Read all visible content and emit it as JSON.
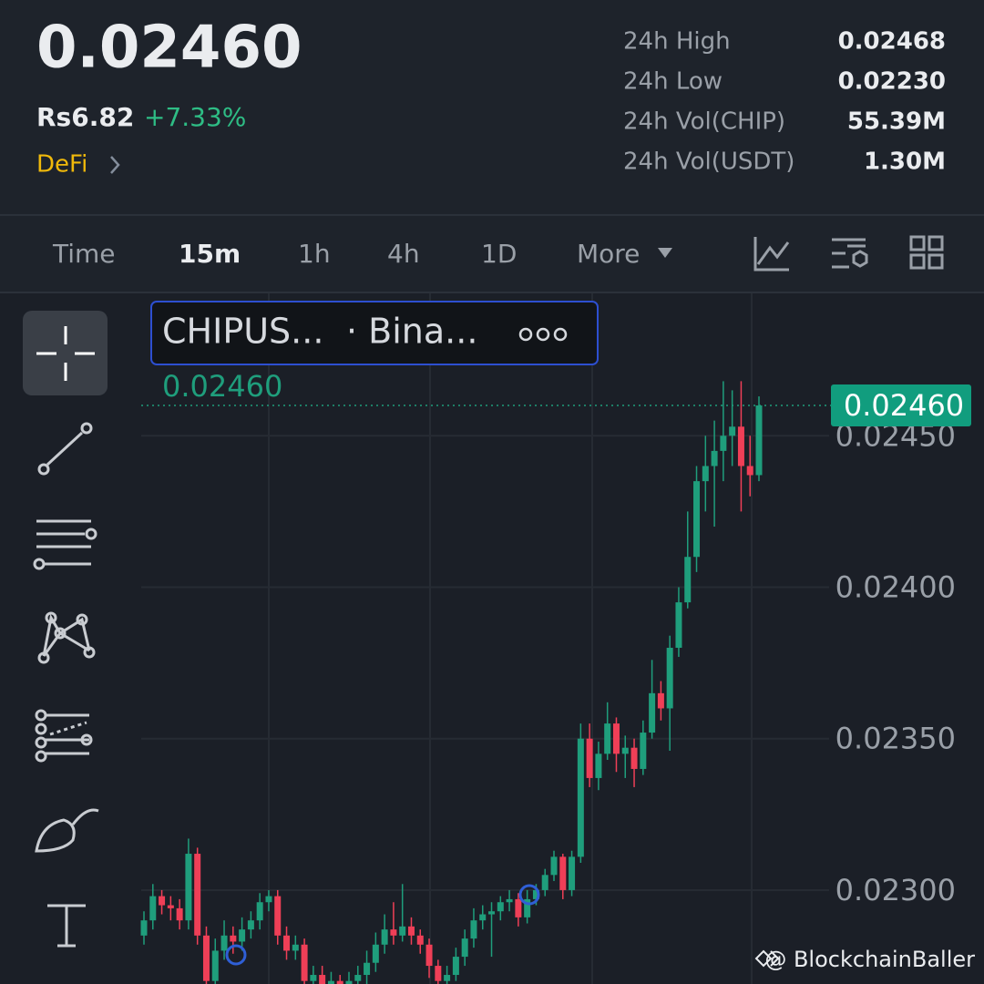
{
  "header": {
    "price": "0.02460",
    "fiat": "Rs6.82",
    "change": "+7.33%",
    "tag": "DeFi",
    "stats": [
      {
        "label": "24h High",
        "value": "0.02468"
      },
      {
        "label": "24h Low",
        "value": "0.02230"
      },
      {
        "label": "24h Vol(CHIP)",
        "value": "55.39M"
      },
      {
        "label": "24h Vol(USDT)",
        "value": "1.30M"
      }
    ]
  },
  "tabs": [
    "Time",
    "15m",
    "1h",
    "4h",
    "1D",
    "More"
  ],
  "legend": {
    "symbol": "CHIPUS...",
    "exchange": "· Bina..."
  },
  "watermark": "@ BlockchainBaller",
  "chart_data": {
    "type": "candlestick",
    "up_color": "#1f9e7c",
    "down_color": "#ef3f57",
    "ylim": [
      0.02269,
      0.02497
    ],
    "yticks": [
      {
        "value": 0.023,
        "label": "0.02300"
      },
      {
        "value": 0.0235,
        "label": "0.02350"
      },
      {
        "value": 0.024,
        "label": "0.02400"
      },
      {
        "value": 0.0245,
        "label": "0.02450"
      }
    ],
    "last_price": {
      "value": 0.0246,
      "label": "0.02460"
    },
    "candles": [
      [
        0.02285,
        0.02293,
        0.02282,
        0.0229
      ],
      [
        0.0229,
        0.02302,
        0.02287,
        0.02298
      ],
      [
        0.02298,
        0.023,
        0.02292,
        0.02295
      ],
      [
        0.02295,
        0.02298,
        0.0229,
        0.02294
      ],
      [
        0.02294,
        0.02297,
        0.02287,
        0.0229
      ],
      [
        0.0229,
        0.02317,
        0.02287,
        0.02312
      ],
      [
        0.02312,
        0.02314,
        0.02282,
        0.02285
      ],
      [
        0.02285,
        0.02288,
        0.02266,
        0.0227
      ],
      [
        0.0227,
        0.02284,
        0.02267,
        0.0228
      ],
      [
        0.0228,
        0.0229,
        0.02277,
        0.02285
      ],
      [
        0.02285,
        0.02288,
        0.02279,
        0.02283
      ],
      [
        0.02283,
        0.02291,
        0.0228,
        0.02287
      ],
      [
        0.02287,
        0.02293,
        0.02284,
        0.0229
      ],
      [
        0.0229,
        0.02299,
        0.02287,
        0.02296
      ],
      [
        0.02296,
        0.023,
        0.02293,
        0.02298
      ],
      [
        0.02298,
        0.023,
        0.02282,
        0.02285
      ],
      [
        0.02285,
        0.02288,
        0.02277,
        0.0228
      ],
      [
        0.0228,
        0.02285,
        0.02277,
        0.02282
      ],
      [
        0.02282,
        0.02284,
        0.02266,
        0.0227
      ],
      [
        0.0227,
        0.02275,
        0.02267,
        0.02272
      ],
      [
        0.02272,
        0.02275,
        0.02265,
        0.02268
      ],
      [
        0.02268,
        0.02273,
        0.02265,
        0.0227
      ],
      [
        0.0227,
        0.02272,
        0.02265,
        0.02268
      ],
      [
        0.02268,
        0.02273,
        0.02266,
        0.0227
      ],
      [
        0.0227,
        0.02275,
        0.02267,
        0.02272
      ],
      [
        0.02272,
        0.0228,
        0.02269,
        0.02276
      ],
      [
        0.02276,
        0.02286,
        0.02273,
        0.02282
      ],
      [
        0.02282,
        0.02292,
        0.02279,
        0.02287
      ],
      [
        0.02287,
        0.02296,
        0.02282,
        0.02285
      ],
      [
        0.02285,
        0.02302,
        0.02283,
        0.02288
      ],
      [
        0.02288,
        0.02291,
        0.02282,
        0.02285
      ],
      [
        0.02285,
        0.02287,
        0.02279,
        0.02282
      ],
      [
        0.02282,
        0.02284,
        0.02271,
        0.02275
      ],
      [
        0.02275,
        0.02277,
        0.02266,
        0.0227
      ],
      [
        0.0227,
        0.02275,
        0.02267,
        0.02272
      ],
      [
        0.02272,
        0.02281,
        0.0227,
        0.02278
      ],
      [
        0.02278,
        0.02287,
        0.02275,
        0.02284
      ],
      [
        0.02284,
        0.02294,
        0.02281,
        0.0229
      ],
      [
        0.0229,
        0.02295,
        0.02287,
        0.02292
      ],
      [
        0.02292,
        0.02296,
        0.02278,
        0.02293
      ],
      [
        0.02293,
        0.02298,
        0.0229,
        0.02296
      ],
      [
        0.02296,
        0.023,
        0.02293,
        0.02297
      ],
      [
        0.02297,
        0.02299,
        0.02288,
        0.02291
      ],
      [
        0.02291,
        0.023,
        0.02289,
        0.02297
      ],
      [
        0.02297,
        0.02302,
        0.02295,
        0.023
      ],
      [
        0.023,
        0.02307,
        0.02298,
        0.02305
      ],
      [
        0.02305,
        0.02313,
        0.02303,
        0.02311
      ],
      [
        0.02311,
        0.02312,
        0.02297,
        0.023
      ],
      [
        0.023,
        0.02313,
        0.02298,
        0.02311
      ],
      [
        0.02311,
        0.02355,
        0.02309,
        0.0235
      ],
      [
        0.0235,
        0.02355,
        0.02334,
        0.02337
      ],
      [
        0.02337,
        0.02349,
        0.02333,
        0.02345
      ],
      [
        0.02345,
        0.02362,
        0.02343,
        0.02355
      ],
      [
        0.02355,
        0.02357,
        0.02339,
        0.02345
      ],
      [
        0.02345,
        0.02351,
        0.02337,
        0.02347
      ],
      [
        0.02347,
        0.0235,
        0.02334,
        0.0234
      ],
      [
        0.0234,
        0.02356,
        0.02338,
        0.02352
      ],
      [
        0.02352,
        0.02376,
        0.0235,
        0.02365
      ],
      [
        0.02365,
        0.02369,
        0.02356,
        0.0236
      ],
      [
        0.0236,
        0.02384,
        0.02346,
        0.0238
      ],
      [
        0.0238,
        0.024,
        0.02377,
        0.02395
      ],
      [
        0.02395,
        0.02425,
        0.02393,
        0.0241
      ],
      [
        0.0241,
        0.0244,
        0.02405,
        0.02435
      ],
      [
        0.02435,
        0.0245,
        0.02425,
        0.0244
      ],
      [
        0.0244,
        0.02455,
        0.0242,
        0.02445
      ],
      [
        0.02445,
        0.02468,
        0.02435,
        0.0245
      ],
      [
        0.0245,
        0.02465,
        0.0244,
        0.02453
      ],
      [
        0.02453,
        0.02468,
        0.02425,
        0.0244
      ],
      [
        0.0244,
        0.0245,
        0.0243,
        0.02437
      ],
      [
        0.02437,
        0.02463,
        0.02435,
        0.0246
      ]
    ]
  }
}
